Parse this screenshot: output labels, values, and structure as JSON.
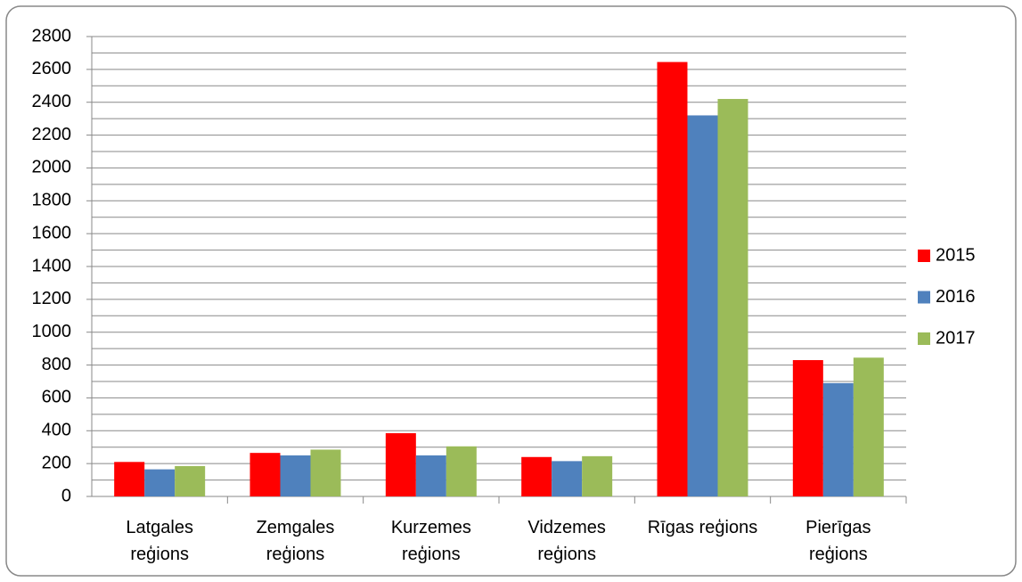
{
  "chart_data": {
    "type": "bar",
    "categories": [
      "Latgales reģions",
      "Zemgales reģions",
      "Kurzemes reģions",
      "Vidzemes reģions",
      "Rīgas reģions",
      "Pierīgas reģions"
    ],
    "series": [
      {
        "name": "2015",
        "color": "#ff0000",
        "values": [
          210,
          265,
          385,
          240,
          2645,
          830
        ]
      },
      {
        "name": "2016",
        "color": "#4f81bd",
        "values": [
          165,
          250,
          250,
          215,
          2320,
          690
        ]
      },
      {
        "name": "2017",
        "color": "#9bbb59",
        "values": [
          185,
          285,
          305,
          245,
          2420,
          845
        ]
      }
    ],
    "ylim": [
      0,
      2800
    ],
    "yticks": [
      0,
      200,
      400,
      600,
      800,
      1000,
      1200,
      1400,
      1600,
      1800,
      2000,
      2200,
      2400,
      2600,
      2800
    ],
    "ygrid": [
      0,
      100,
      200,
      300,
      400,
      500,
      600,
      700,
      800,
      900,
      1000,
      1100,
      1200,
      1300,
      1400,
      1500,
      1600,
      1700,
      1800,
      1900,
      2000,
      2100,
      2200,
      2300,
      2400,
      2500,
      2600,
      2700,
      2800
    ],
    "grid": true,
    "legend": "right"
  }
}
